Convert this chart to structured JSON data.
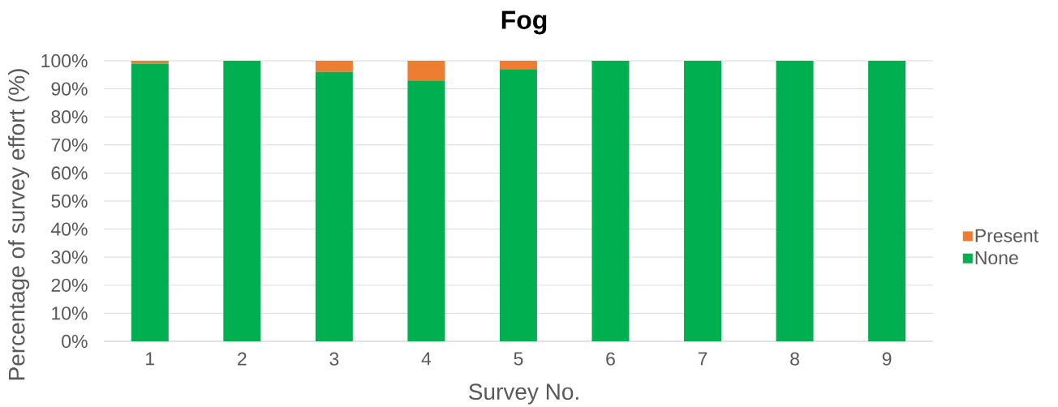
{
  "chart_data": {
    "type": "bar",
    "title": "Fog",
    "xlabel": "Survey No.",
    "ylabel": "Percentage of survey effort (%)",
    "categories": [
      "1",
      "2",
      "3",
      "4",
      "5",
      "6",
      "7",
      "8",
      "9"
    ],
    "series": [
      {
        "name": "None",
        "color": "#00b050",
        "values": [
          99,
          100,
          96,
          93,
          97,
          100,
          100,
          100,
          100
        ]
      },
      {
        "name": "Present",
        "color": "#ed7d31",
        "values": [
          1,
          0,
          4,
          7,
          3,
          0,
          0,
          0,
          0
        ]
      }
    ],
    "stacked": true,
    "ylim": [
      0,
      100
    ],
    "yticks": [
      {
        "value": 0,
        "label": "0%"
      },
      {
        "value": 10,
        "label": "10%"
      },
      {
        "value": 20,
        "label": "20%"
      },
      {
        "value": 30,
        "label": "30%"
      },
      {
        "value": 40,
        "label": "40%"
      },
      {
        "value": 50,
        "label": "50%"
      },
      {
        "value": 60,
        "label": "60%"
      },
      {
        "value": 70,
        "label": "70%"
      },
      {
        "value": 80,
        "label": "80%"
      },
      {
        "value": 90,
        "label": "90%"
      },
      {
        "value": 100,
        "label": "100%"
      }
    ],
    "grid": "y",
    "legend": "right"
  }
}
